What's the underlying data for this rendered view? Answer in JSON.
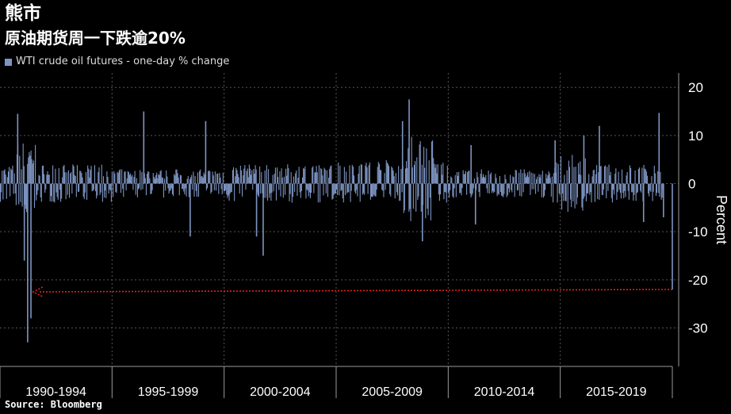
{
  "header": {
    "title": "熊市",
    "subtitle": "原油期货周一下跌逾20%",
    "legend_label": "WTI crude oil futures - one-day % change"
  },
  "footer": {
    "source": "Source: Bloomberg"
  },
  "colors": {
    "series": "#7e95c2",
    "arrow": "#e02020",
    "grid": "#555555",
    "axis_text": "#ffffff"
  },
  "chart_data": {
    "type": "bar",
    "title": "熊市",
    "subtitle": "原油期货周一下跌逾20%",
    "ylabel": "Percent",
    "ylim": [
      -38,
      23
    ],
    "y_ticks": [
      20,
      10,
      0,
      -10,
      -20,
      -30
    ],
    "x_categories": [
      "1990-1994",
      "1995-1999",
      "2000-2004",
      "2005-2009",
      "2010-2014",
      "2015-2019"
    ],
    "x_range": [
      1989.8,
      2020.2
    ],
    "legend_position": "top-left",
    "grid": true,
    "series": [
      {
        "name": "WTI crude oil futures - one-day % change",
        "baseline_volatility": [
          {
            "period": "1990-1994",
            "typical_range": [
              -4,
              4
            ]
          },
          {
            "period": "1995-1999",
            "typical_range": [
              -3,
              3
            ]
          },
          {
            "period": "2000-2004",
            "typical_range": [
              -4,
              4
            ]
          },
          {
            "period": "2005-2009",
            "typical_range": [
              -4,
              5
            ]
          },
          {
            "period": "2010-2014",
            "typical_range": [
              -3,
              3
            ]
          },
          {
            "period": "2015-2019",
            "typical_range": [
              -4,
              4
            ]
          }
        ],
        "notable_points": [
          {
            "x": 1990.6,
            "y": 14.5
          },
          {
            "x": 1990.9,
            "y": -16
          },
          {
            "x": 1991.05,
            "y": -33
          },
          {
            "x": 1991.2,
            "y": -28
          },
          {
            "x": 1996.3,
            "y": 15
          },
          {
            "x": 1998.4,
            "y": -11
          },
          {
            "x": 1999.1,
            "y": 13
          },
          {
            "x": 2001.4,
            "y": -11
          },
          {
            "x": 2001.7,
            "y": -15
          },
          {
            "x": 2008.0,
            "y": 13
          },
          {
            "x": 2008.3,
            "y": 17.5
          },
          {
            "x": 2008.9,
            "y": -12
          },
          {
            "x": 2011.1,
            "y": 8
          },
          {
            "x": 2011.3,
            "y": -8.5
          },
          {
            "x": 2014.9,
            "y": 9
          },
          {
            "x": 2016.2,
            "y": 10
          },
          {
            "x": 2016.9,
            "y": 12
          },
          {
            "x": 2018.9,
            "y": -8
          },
          {
            "x": 2019.6,
            "y": 14.7
          },
          {
            "x": 2019.8,
            "y": -7
          },
          {
            "x": 2020.2,
            "y": -22
          }
        ]
      }
    ],
    "annotations": [
      {
        "type": "arrow",
        "from": {
          "x": 2020.2,
          "y": -22
        },
        "to": {
          "x": 1991.3,
          "y": -22.5
        }
      }
    ]
  }
}
